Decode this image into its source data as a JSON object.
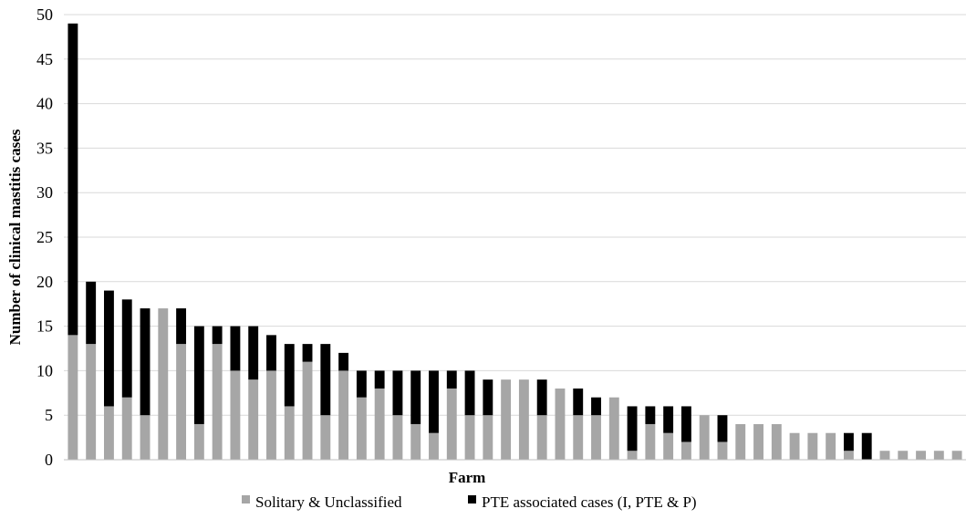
{
  "chart_data": {
    "type": "bar",
    "stacked": true,
    "title": "",
    "xlabel": "Farm",
    "ylabel": "Number of clinical mastitis cases",
    "ylim": [
      0,
      50
    ],
    "yticks": [
      0,
      5,
      10,
      15,
      20,
      25,
      30,
      35,
      40,
      45,
      50
    ],
    "grid": true,
    "legend_position": "bottom",
    "series": [
      {
        "name": "Solitary & Unclassified",
        "color": "#a6a6a6",
        "values": [
          14,
          13,
          6,
          7,
          5,
          17,
          13,
          4,
          13,
          10,
          9,
          10,
          6,
          11,
          5,
          10,
          7,
          8,
          5,
          4,
          3,
          8,
          5,
          5,
          9,
          9,
          5,
          8,
          5,
          5,
          7,
          1,
          4,
          3,
          2,
          5,
          2,
          4,
          4,
          4,
          3,
          3,
          3,
          1,
          0,
          1,
          1,
          1,
          1,
          1
        ]
      },
      {
        "name": "PTE associated cases (I, PTE & P)",
        "color": "#000000",
        "values": [
          35,
          7,
          13,
          11,
          12,
          0,
          4,
          11,
          2,
          5,
          6,
          4,
          7,
          2,
          8,
          2,
          3,
          2,
          5,
          6,
          7,
          2,
          5,
          4,
          0,
          0,
          4,
          0,
          3,
          2,
          0,
          5,
          2,
          3,
          4,
          0,
          3,
          0,
          0,
          0,
          0,
          0,
          0,
          2,
          3,
          0,
          0,
          0,
          0,
          0
        ]
      }
    ]
  },
  "legend": {
    "items": [
      {
        "label": "Solitary & Unclassified",
        "color": "#a6a6a6"
      },
      {
        "label": "PTE associated cases (I, PTE & P)",
        "color": "#000000"
      }
    ]
  }
}
